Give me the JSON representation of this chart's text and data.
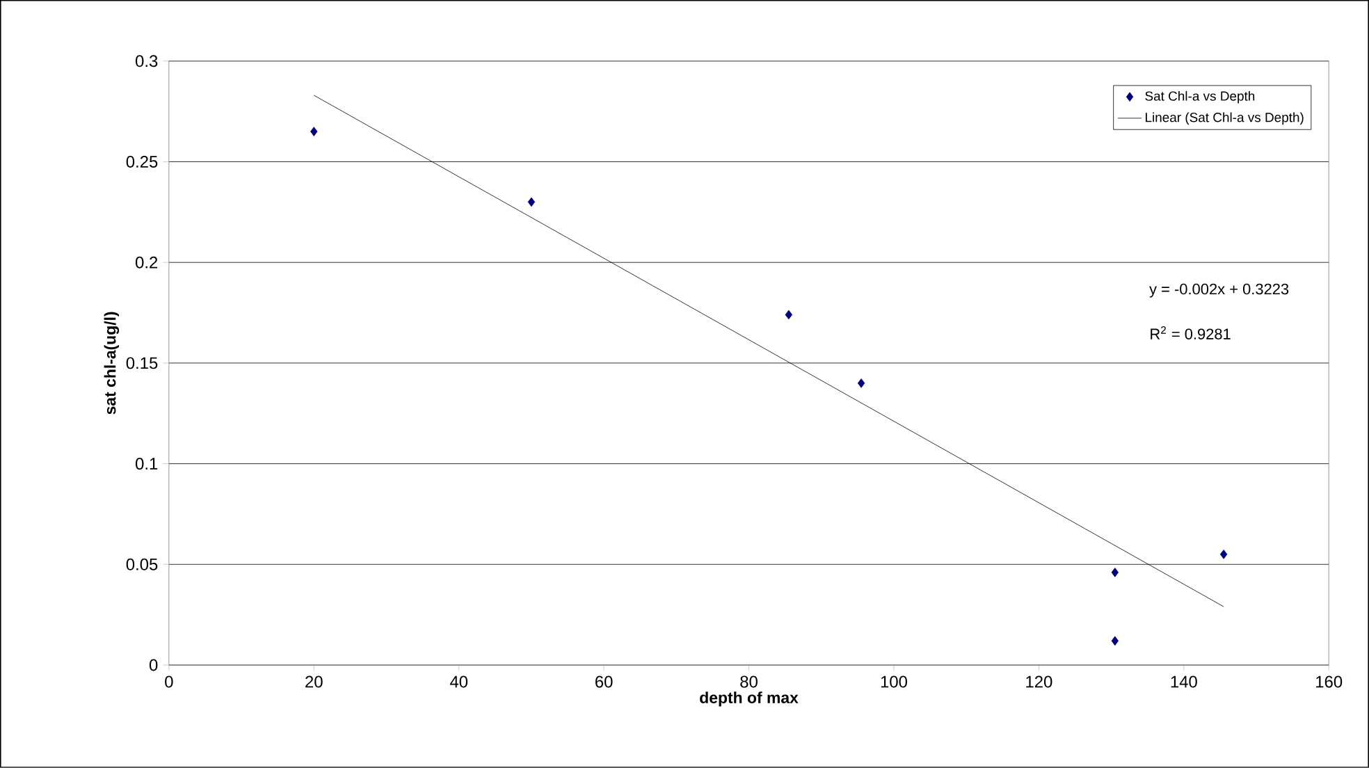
{
  "chart_data": {
    "type": "scatter",
    "xlabel": "depth of max",
    "ylabel": "sat chl-a(ug/l)",
    "xlim": [
      0,
      160
    ],
    "ylim": [
      0,
      0.3
    ],
    "xticks": [
      0,
      20,
      40,
      60,
      80,
      100,
      120,
      140,
      160
    ],
    "yticks": [
      0,
      0.05,
      0.1,
      0.15,
      0.2,
      0.25,
      0.3
    ],
    "grid": "y",
    "legend": "top right",
    "marker": "diamond",
    "series": [
      {
        "name": "Sat Chl-a vs Depth",
        "color": "#000080",
        "x": [
          20,
          50,
          85.5,
          95.5,
          130.5,
          130.5,
          145.5
        ],
        "values": [
          0.265,
          0.23,
          0.174,
          0.14,
          0.046,
          0.012,
          0.055
        ]
      },
      {
        "name": "Linear (Sat Chl-a vs Depth)",
        "type": "line",
        "color": "#000000",
        "marker": "none",
        "x": [
          20,
          145.5
        ],
        "values": [
          0.283,
          0.029
        ]
      }
    ],
    "annotations": [
      "y = -0.002x + 0.3223",
      "R$^{2}$ = 0.9281"
    ]
  }
}
